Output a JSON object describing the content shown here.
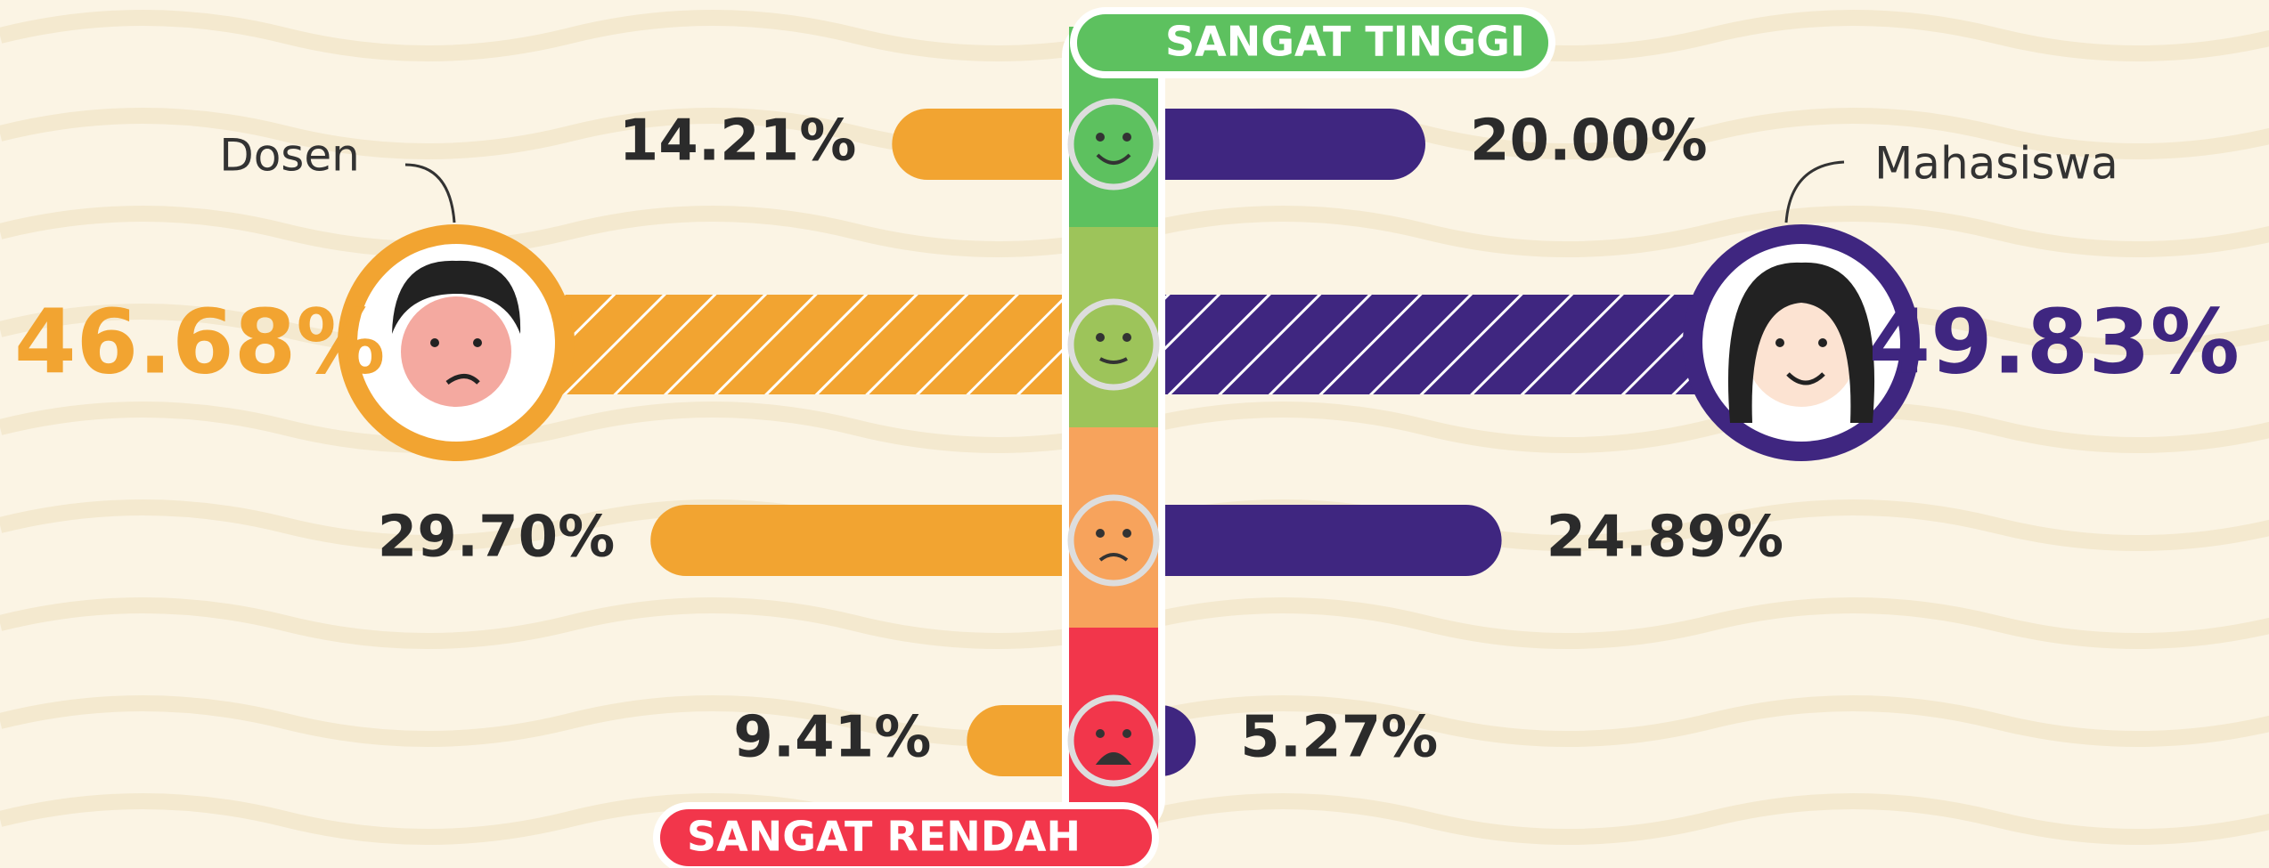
{
  "chart_data": {
    "type": "diverging_bar",
    "top_label": "SANGAT TINGGI",
    "bottom_label": "SANGAT RENDAH",
    "categories": [
      null,
      null,
      null,
      null
    ],
    "series": [
      {
        "name": "Dosen",
        "color": "#F2A431",
        "values": [
          14.21,
          46.68,
          29.7,
          9.41
        ],
        "value_labels": [
          "14.21%",
          "46.68%",
          "29.70%",
          "9.41%"
        ]
      },
      {
        "name": "Mahasiswa",
        "color": "#3F2680",
        "values": [
          20.0,
          49.83,
          24.89,
          5.27
        ],
        "value_labels": [
          "20.00%",
          "49.83%",
          "24.89%",
          "5.27%"
        ]
      }
    ],
    "level_colors": [
      "#5DC15F",
      "#9DC45A",
      "#F7A35C",
      "#F2364B"
    ]
  }
}
